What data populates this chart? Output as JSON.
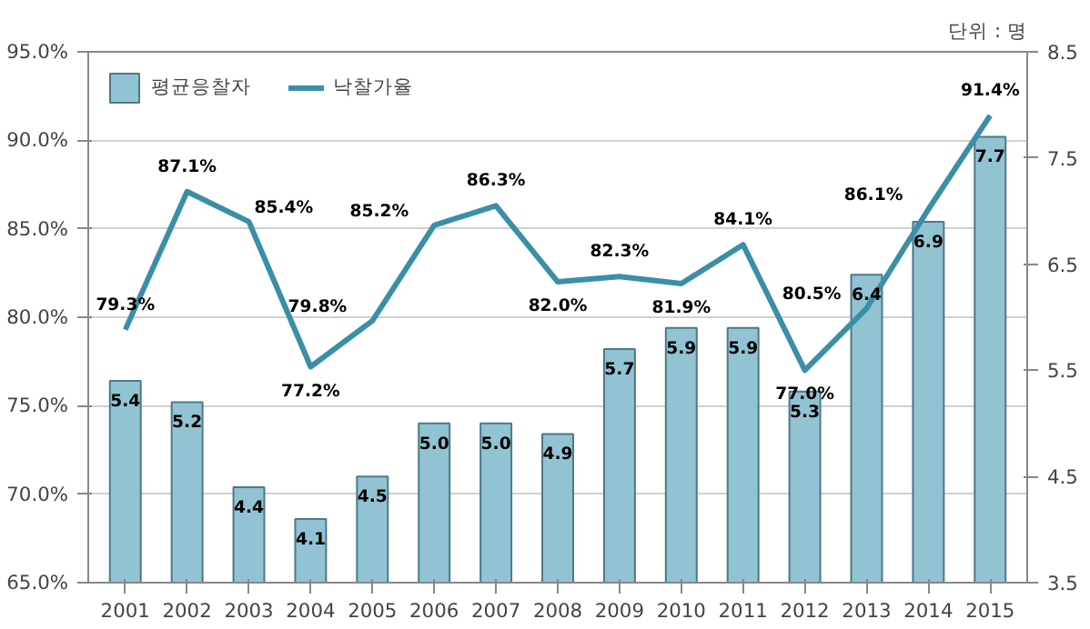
{
  "chart_data": {
    "type": "bar",
    "categories": [
      "2001",
      "2002",
      "2003",
      "2004",
      "2005",
      "2006",
      "2007",
      "2008",
      "2009",
      "2010",
      "2011",
      "2012",
      "2013",
      "2014",
      "2015"
    ],
    "y2label": "단위 : 명",
    "series": [
      {
        "name": "평균응찰자",
        "axis": "y2",
        "color": "#92c3d3",
        "values": [
          5.4,
          5.2,
          4.4,
          4.1,
          4.5,
          5.0,
          5.0,
          4.9,
          5.7,
          5.9,
          5.9,
          5.3,
          6.4,
          6.9,
          7.7
        ],
        "value_labels": [
          "5.4",
          "5.2",
          "4.4",
          "4.1",
          "4.5",
          "5.0",
          "5.0",
          "4.9",
          "5.7",
          "5.9",
          "5.9",
          "5.3",
          "6.4",
          "6.9",
          "7.7"
        ]
      },
      {
        "name": "낙찰가율",
        "type": "line",
        "color": "#3a8fa6",
        "values": [
          79.3,
          87.1,
          85.4,
          77.2,
          79.8,
          85.2,
          86.3,
          82.0,
          82.3,
          81.9,
          84.1,
          77.0,
          80.5,
          86.1,
          91.4
        ],
        "value_labels": [
          "79.3%",
          "87.1%",
          "85.4%",
          "77.2%",
          "79.8%",
          "85.2%",
          "86.3%",
          "82.0%",
          "82.3%",
          "81.9%",
          "84.1%",
          "77.0%",
          "80.5%",
          "86.1%",
          "91.4%"
        ]
      }
    ],
    "ylim": [
      65,
      95
    ],
    "yticks": [
      {
        "value": 65,
        "label": "65.0%"
      },
      {
        "value": 70,
        "label": "70.0%"
      },
      {
        "value": 75,
        "label": "75.0%"
      },
      {
        "value": 80,
        "label": "80.0%"
      },
      {
        "value": 85,
        "label": "85.0%"
      },
      {
        "value": 90,
        "label": "90.0%"
      },
      {
        "value": 95,
        "label": "95.0%"
      }
    ],
    "y2lim": [
      3.5,
      8.5
    ],
    "y2ticks": [
      3.5,
      4.5,
      5.5,
      6.5,
      7.5,
      8.5
    ],
    "grid": "y",
    "legend": "top left",
    "line_style": "solid",
    "marker": "none"
  }
}
